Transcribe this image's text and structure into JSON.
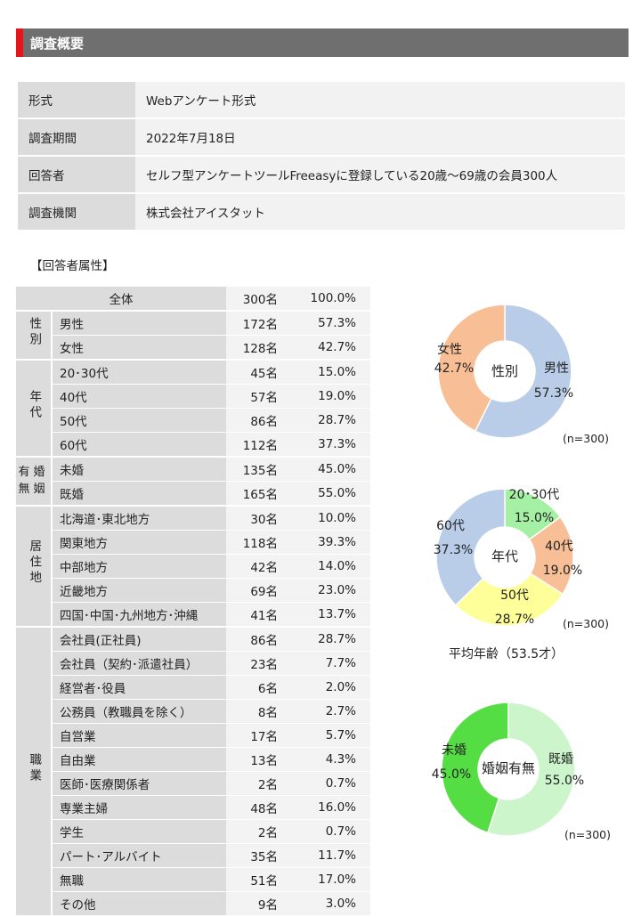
{
  "section": {
    "title": "調査概要"
  },
  "overview": [
    {
      "key": "形式",
      "value": "Webアンケート形式"
    },
    {
      "key": "調査期間",
      "value": "2022年7月18日"
    },
    {
      "key": "回答者",
      "value": "セルフ型アンケートツールFreeasyに登録している20歳～69歳の会員300人"
    },
    {
      "key": "調査機関",
      "value": "株式会社アイスタット"
    }
  ],
  "attributes_title": "【回答者属性】",
  "attributes": {
    "total": {
      "label": "全体",
      "count": "300名",
      "pct": "100.0%"
    },
    "groups": [
      {
        "category": "性別",
        "rows": [
          {
            "label": "男性",
            "count": "172名",
            "pct": "57.3%"
          },
          {
            "label": "女性",
            "count": "128名",
            "pct": "42.7%"
          }
        ]
      },
      {
        "category": "年代",
        "rows": [
          {
            "label": "20･30代",
            "count": "45名",
            "pct": "15.0%"
          },
          {
            "label": "40代",
            "count": "57名",
            "pct": "19.0%"
          },
          {
            "label": "50代",
            "count": "86名",
            "pct": "28.7%"
          },
          {
            "label": "60代",
            "count": "112名",
            "pct": "37.3%"
          }
        ]
      },
      {
        "category": "有婚無姻",
        "rows": [
          {
            "label": "未婚",
            "count": "135名",
            "pct": "45.0%"
          },
          {
            "label": "既婚",
            "count": "165名",
            "pct": "55.0%"
          }
        ]
      },
      {
        "category": "居住地",
        "rows": [
          {
            "label": "北海道･東北地方",
            "count": "30名",
            "pct": "10.0%"
          },
          {
            "label": "関東地方",
            "count": "118名",
            "pct": "39.3%"
          },
          {
            "label": "中部地方",
            "count": "42名",
            "pct": "14.0%"
          },
          {
            "label": "近畿地方",
            "count": "69名",
            "pct": "23.0%"
          },
          {
            "label": "四国･中国･九州地方･沖縄",
            "count": "41名",
            "pct": "13.7%"
          }
        ]
      },
      {
        "category": "職業",
        "rows": [
          {
            "label": "会社員(正社員)",
            "count": "86名",
            "pct": "28.7%"
          },
          {
            "label": "会社員（契約･派遣社員）",
            "count": "23名",
            "pct": "7.7%"
          },
          {
            "label": "経営者･役員",
            "count": "6名",
            "pct": "2.0%"
          },
          {
            "label": "公務員（教職員を除く）",
            "count": "8名",
            "pct": "2.7%"
          },
          {
            "label": "自営業",
            "count": "17名",
            "pct": "5.7%"
          },
          {
            "label": "自由業",
            "count": "13名",
            "pct": "4.3%"
          },
          {
            "label": "医師･医療関係者",
            "count": "2名",
            "pct": "0.7%"
          },
          {
            "label": "専業主婦",
            "count": "48名",
            "pct": "16.0%"
          },
          {
            "label": "学生",
            "count": "2名",
            "pct": "0.7%"
          },
          {
            "label": "パート･アルバイト",
            "count": "35名",
            "pct": "11.7%"
          },
          {
            "label": "無職",
            "count": "51名",
            "pct": "17.0%"
          },
          {
            "label": "その他",
            "count": "9名",
            "pct": "3.0%"
          }
        ]
      }
    ]
  },
  "avg_age_note": "平均年齢（53.5才）",
  "chart_data": [
    {
      "type": "pie",
      "center_label": "性別",
      "n_label": "(n=300)",
      "slices": [
        {
          "name": "男性",
          "value": 57.3,
          "label": "57.3%",
          "color": "#b9cde8"
        },
        {
          "name": "女性",
          "value": 42.7,
          "label": "42.7%",
          "color": "#f8bf96"
        }
      ]
    },
    {
      "type": "pie",
      "center_label": "年代",
      "n_label": "(n=300)",
      "slices": [
        {
          "name": "20･30代",
          "value": 15.0,
          "label": "15.0%",
          "color": "#a5f0a5"
        },
        {
          "name": "40代",
          "value": 19.0,
          "label": "19.0%",
          "color": "#f8bf96"
        },
        {
          "name": "50代",
          "value": 28.7,
          "label": "28.7%",
          "color": "#ffff99"
        },
        {
          "name": "60代",
          "value": 37.3,
          "label": "37.3%",
          "color": "#b9cde8"
        }
      ]
    },
    {
      "type": "pie",
      "center_label": "婚姻有無",
      "n_label": "(n=300)",
      "slices": [
        {
          "name": "既婚",
          "value": 55.0,
          "label": "55.0%",
          "color": "#ccf5cc"
        },
        {
          "name": "未婚",
          "value": 45.0,
          "label": "45.0%",
          "color": "#55dd44"
        }
      ]
    }
  ]
}
